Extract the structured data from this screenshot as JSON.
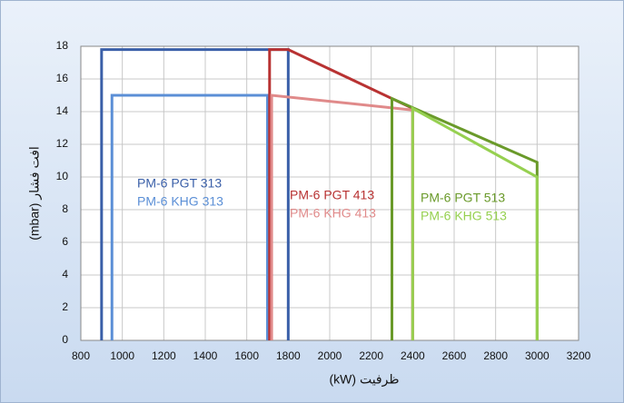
{
  "chart_data": {
    "type": "line",
    "xlabel": "ظرفیت (kW)",
    "ylabel": "افت فشار (mbar)",
    "xlim": [
      800,
      3200
    ],
    "xticks": [
      800,
      1000,
      1200,
      1400,
      1600,
      1800,
      2000,
      2200,
      2400,
      2600,
      2800,
      3000,
      3200
    ],
    "ylim": [
      0,
      18
    ],
    "yticks": [
      0,
      2,
      4,
      6,
      8,
      10,
      12,
      14,
      16,
      18
    ],
    "grid": true,
    "series": [
      {
        "name": "PM-6 PGT 313",
        "color": "#3a5fa8",
        "x": [
          900,
          900,
          1800,
          1800
        ],
        "values": [
          0,
          17.8,
          17.8,
          0
        ]
      },
      {
        "name": "PM-6 KHG 313",
        "color": "#5b8fd6",
        "x": [
          950,
          950,
          1700,
          1700
        ],
        "values": [
          0,
          15,
          15,
          0
        ]
      },
      {
        "name": "PM-6 PGT 413",
        "color": "#b83232",
        "x": [
          1710,
          1710,
          1800,
          2400,
          2400
        ],
        "values": [
          0,
          17.8,
          17.8,
          14.2,
          0
        ]
      },
      {
        "name": "PM-6 KHG 413",
        "color": "#e08a8a",
        "x": [
          1720,
          1720,
          2400,
          2400
        ],
        "values": [
          0,
          15,
          14.1,
          0
        ]
      },
      {
        "name": "PM-6 PGT 513",
        "color": "#6a9a2a",
        "x": [
          2300,
          2300,
          3000,
          3000
        ],
        "values": [
          0,
          14.8,
          10.9,
          0
        ]
      },
      {
        "name": "PM-6 KHG 513",
        "color": "#96d050",
        "x": [
          2400,
          2400,
          3000,
          3000
        ],
        "values": [
          0,
          14.2,
          10,
          0
        ]
      }
    ]
  }
}
